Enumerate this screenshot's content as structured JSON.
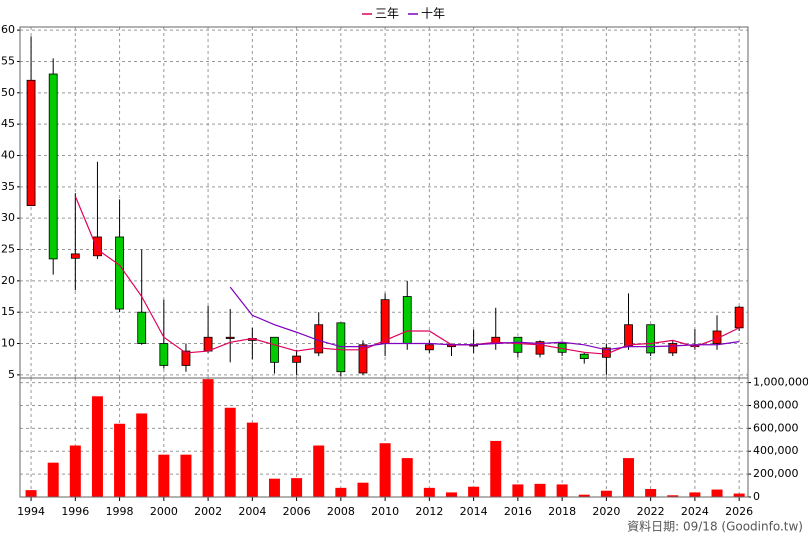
{
  "chart_data": [
    {
      "type": "candlestick",
      "x": [
        1994,
        1995,
        1996,
        1997,
        1998,
        1999,
        2000,
        2001,
        2002,
        2003,
        2004,
        2005,
        2006,
        2007,
        2008,
        2009,
        2010,
        2011,
        2012,
        2013,
        2014,
        2015,
        2016,
        2017,
        2018,
        2019,
        2020,
        2021,
        2022,
        2023,
        2024,
        2025,
        2026
      ],
      "open": [
        32,
        53,
        23.6,
        24,
        27,
        15,
        10,
        6.5,
        8.8,
        10.8,
        10.5,
        11,
        7,
        8.5,
        13.3,
        5.3,
        10,
        17.5,
        9,
        9.5,
        9.6,
        10,
        11,
        8.3,
        10,
        8.3,
        7.8,
        9.6,
        13,
        8.5,
        9.5,
        10,
        12.5
      ],
      "high": [
        59,
        55.5,
        34,
        39,
        33,
        25,
        17,
        10,
        16,
        15.5,
        12.5,
        11,
        9,
        15,
        13.3,
        10.5,
        18,
        20,
        10.5,
        10,
        12.2,
        15.7,
        11,
        10.5,
        10,
        8.5,
        10,
        18,
        13,
        10.5,
        12.3,
        14.5,
        16
      ],
      "low": [
        32,
        21,
        18.5,
        23.5,
        15,
        9.8,
        6,
        5.5,
        8.5,
        7,
        7.5,
        5.2,
        5,
        8,
        4.8,
        5,
        8,
        9,
        8.5,
        8,
        8.5,
        9,
        7.8,
        7.8,
        8,
        6.8,
        5,
        9,
        8,
        8,
        9,
        9,
        12
      ],
      "close": [
        52,
        23.5,
        24.3,
        27,
        15.5,
        10,
        6.5,
        8.8,
        11,
        11,
        10.8,
        7,
        8,
        13,
        5.5,
        9.8,
        17,
        10,
        9.8,
        9.8,
        9.8,
        11,
        8.6,
        10.3,
        8.6,
        7.6,
        9.3,
        13,
        8.5,
        10,
        9.7,
        12,
        15.8
      ],
      "up_color": "#ff0000",
      "down_color": "#00cc00",
      "series": [
        {
          "name": "三年",
          "color": "#e0005a",
          "values": [
            null,
            null,
            33.5,
            25,
            22.5,
            17.5,
            11,
            8.5,
            8.8,
            10.2,
            10.8,
            9.8,
            8.8,
            9.3,
            9,
            9,
            10.5,
            12,
            12,
            9.8,
            9.8,
            10.2,
            10,
            9.8,
            9.2,
            8.6,
            8.3,
            9.8,
            10,
            10.5,
            9.5,
            10.8,
            12.5
          ]
        },
        {
          "name": "十年",
          "color": "#8000c0",
          "values": [
            null,
            null,
            null,
            null,
            null,
            null,
            null,
            null,
            null,
            19,
            14.5,
            13,
            11.8,
            10.5,
            9.5,
            9.5,
            10,
            10,
            10,
            9.8,
            9.8,
            10,
            10.2,
            10,
            10.2,
            9.8,
            9,
            9.5,
            9.5,
            9.6,
            9.8,
            9.8,
            10.3
          ]
        }
      ],
      "xlim": [
        1993.5,
        2026.4
      ],
      "xticks": [
        1994,
        1996,
        1998,
        2000,
        2002,
        2004,
        2006,
        2008,
        2010,
        2012,
        2014,
        2016,
        2018,
        2020,
        2022,
        2024,
        2026
      ],
      "ylim": [
        4.5,
        60.5
      ],
      "yticks": [
        5,
        10,
        15,
        20,
        25,
        30,
        35,
        40,
        45,
        50,
        55,
        60
      ],
      "grid": true
    },
    {
      "type": "bar",
      "x": [
        1994,
        1995,
        1996,
        1997,
        1998,
        1999,
        2000,
        2001,
        2002,
        2003,
        2004,
        2005,
        2006,
        2007,
        2008,
        2009,
        2010,
        2011,
        2012,
        2013,
        2014,
        2015,
        2016,
        2017,
        2018,
        2019,
        2020,
        2021,
        2022,
        2023,
        2024,
        2025,
        2026
      ],
      "values": [
        60000,
        300000,
        450000,
        880000,
        640000,
        730000,
        370000,
        370000,
        1030000,
        780000,
        650000,
        160000,
        165000,
        450000,
        80000,
        125000,
        470000,
        340000,
        80000,
        40000,
        90000,
        490000,
        110000,
        115000,
        110000,
        20000,
        55000,
        340000,
        70000,
        15000,
        40000,
        65000,
        30000
      ],
      "color": "#ff0000",
      "xlim": [
        1993.5,
        2026.4
      ],
      "xticks": [
        1994,
        1996,
        1998,
        2000,
        2002,
        2004,
        2006,
        2008,
        2010,
        2012,
        2014,
        2016,
        2018,
        2020,
        2022,
        2024,
        2026
      ],
      "ylim": [
        0,
        1040000
      ],
      "yticks": [
        0,
        {
          "value": 200000,
          "label": "200,000"
        },
        {
          "value": 400000,
          "label": "400,000"
        },
        {
          "value": 600000,
          "label": "600,000"
        },
        {
          "value": 800000,
          "label": "800,000"
        },
        {
          "value": 1000000,
          "label": "1,000,000"
        }
      ],
      "grid": true
    }
  ],
  "footer": "資料日期: 09/18 (Goodinfo.tw)"
}
